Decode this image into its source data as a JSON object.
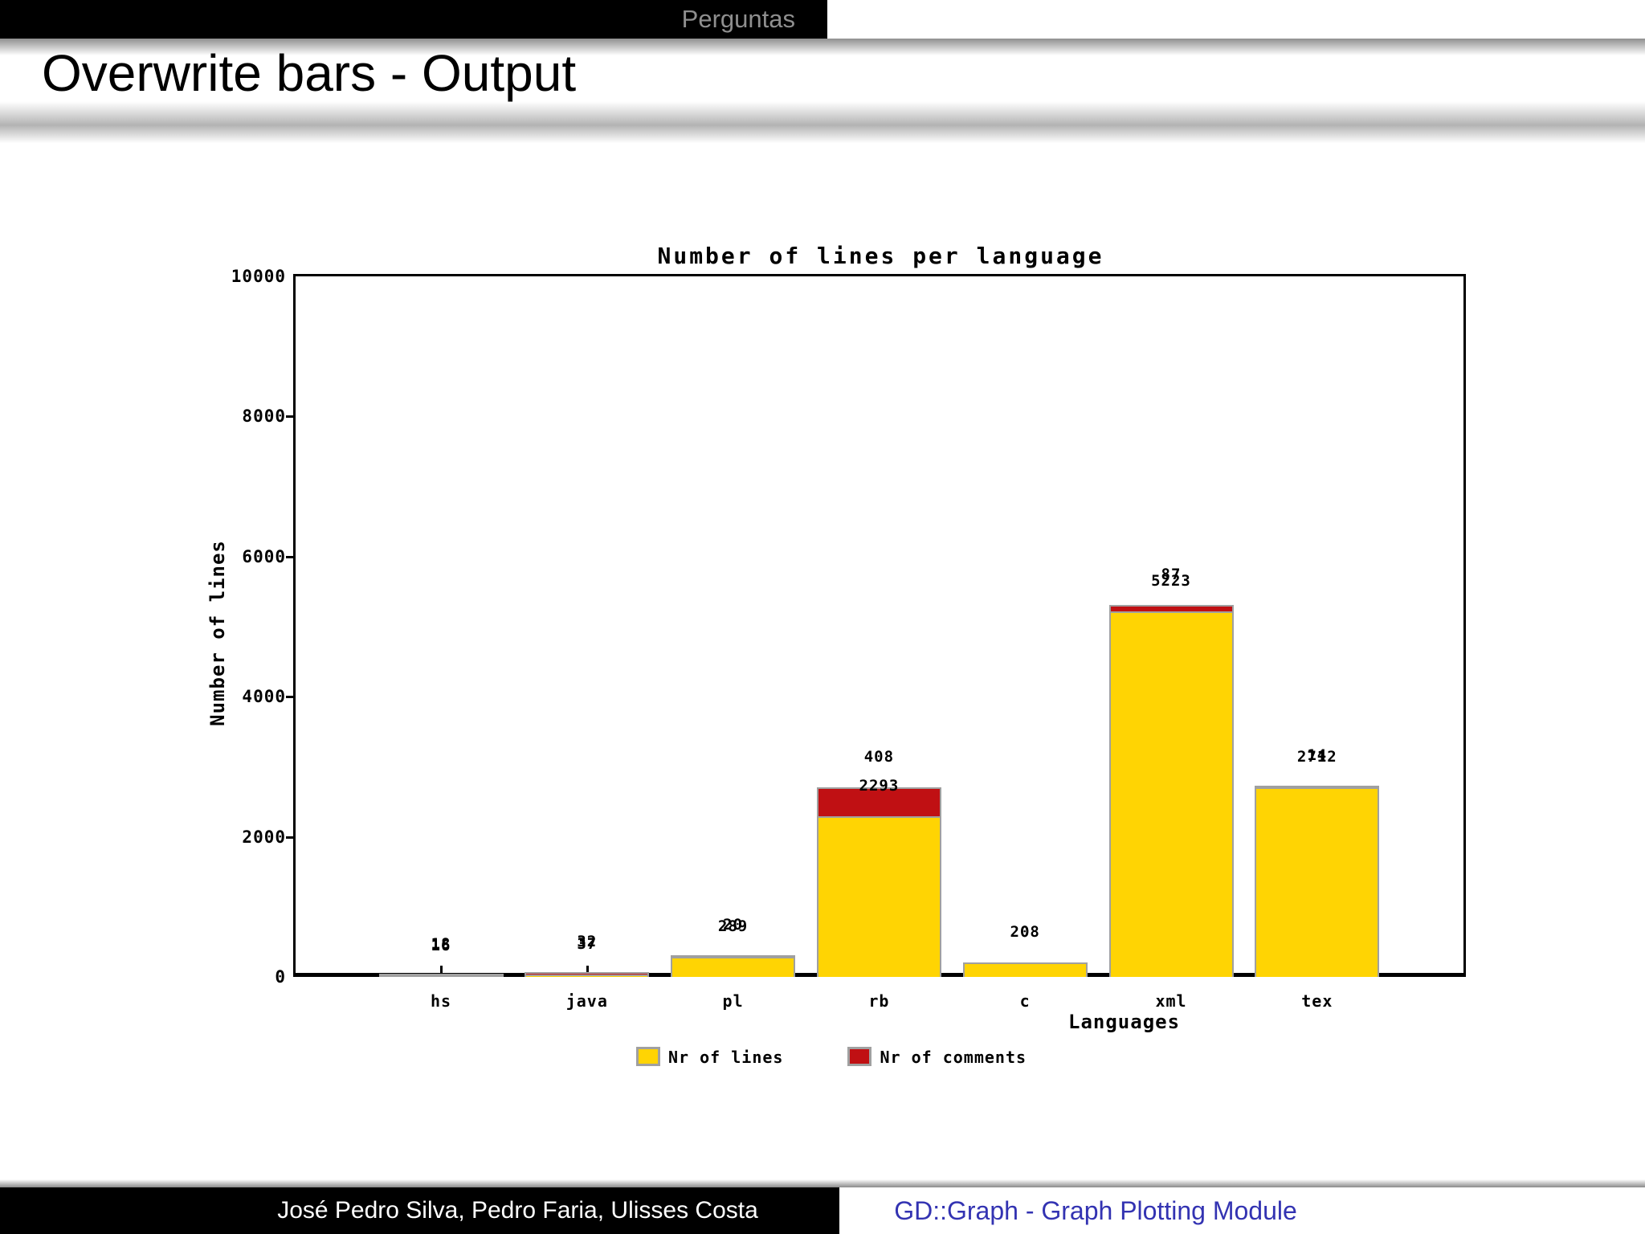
{
  "header": {
    "tab_label": "Perguntas",
    "title": "Overwrite bars - Output"
  },
  "footer": {
    "authors": "José Pedro Silva, Pedro Faria, Ulisses Costa",
    "module": "GD::Graph - Graph Plotting Module"
  },
  "colors": {
    "header_bg": "#000000",
    "tab_text": "#8F8F8F",
    "bar_yellow": "#FFD403",
    "bar_red": "#C01013",
    "bar_border": "#A0A0A0",
    "footer_link_blue": "#3333B2"
  },
  "chart_data": {
    "type": "bar",
    "stacked": true,
    "title": "Number of lines per language",
    "xlabel": "Languages",
    "ylabel": "Number of lines",
    "ylim": [
      0,
      10000
    ],
    "yticks": [
      0,
      2000,
      4000,
      6000,
      8000,
      10000
    ],
    "grid": false,
    "legend_position": "bottom",
    "categories": [
      "hs",
      "java",
      "pl",
      "rb",
      "c",
      "xml",
      "tex"
    ],
    "series": [
      {
        "name": "Nr of lines",
        "color": "#FFD403",
        "values": [
          16,
          37,
          289,
          2293,
          208,
          5223,
          2712
        ],
        "value_labels": [
          "16",
          "37",
          "289",
          "2293",
          "208",
          "5223",
          "2712"
        ]
      },
      {
        "name": "Nr of comments",
        "color": "#C01013",
        "values": [
          18,
          32,
          20,
          408,
          0,
          87,
          14
        ],
        "value_labels": [
          "18",
          "32",
          "20",
          "408",
          "0",
          "87",
          "14"
        ]
      }
    ],
    "bar_border_color": "#A0A0A0",
    "note": "Overlapping value labels are intentional (overwrite bars demo)"
  }
}
